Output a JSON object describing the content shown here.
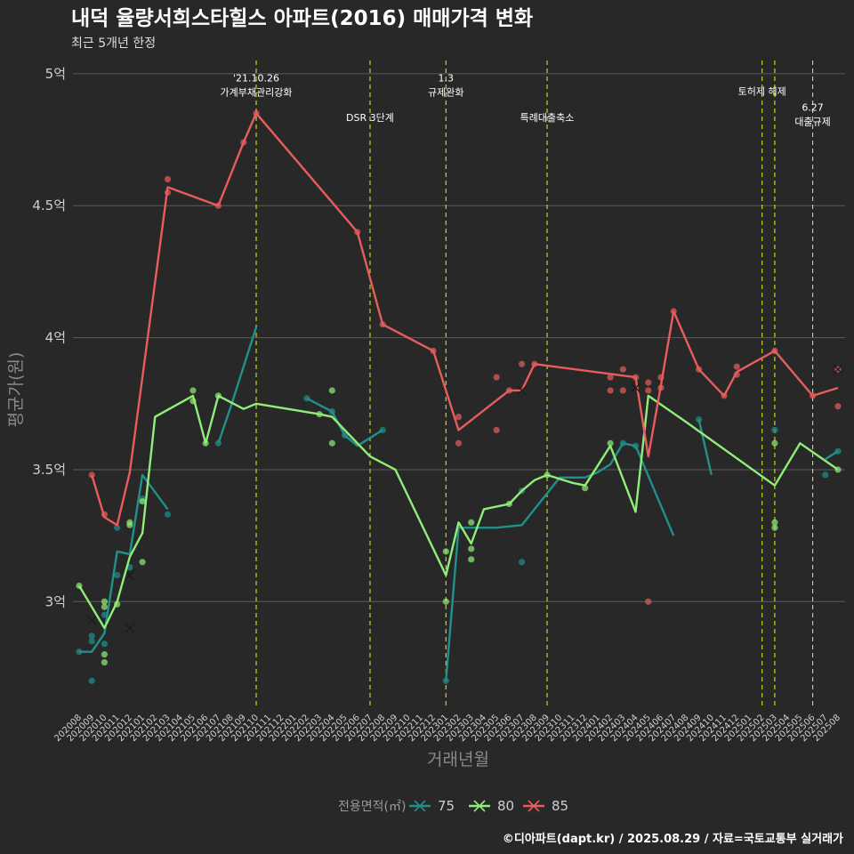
{
  "chart_data": {
    "type": "line",
    "title": "내덕 율량서희스타힐스 아파트(2016) 매매가격 변화",
    "subtitle": "최근 5개년 한정",
    "xlabel": "거래년월",
    "ylabel": "평균가(원)",
    "caption": "©디아파트(dapt.kr) / 2025.08.29 / 자료=국토교통부 실거래가",
    "ylim": [
      2.6,
      5.05
    ],
    "y_ticks": [
      {
        "value": 3,
        "label": "3억"
      },
      {
        "value": 3.5,
        "label": "3.5억"
      },
      {
        "value": 4,
        "label": "4억"
      },
      {
        "value": 4.5,
        "label": "4.5억"
      },
      {
        "value": 5,
        "label": "5억"
      }
    ],
    "x_months": [
      "202008",
      "202009",
      "202010",
      "202011",
      "202012",
      "202101",
      "202102",
      "202103",
      "202104",
      "202105",
      "202106",
      "202107",
      "202108",
      "202109",
      "202110",
      "202111",
      "202112",
      "202201",
      "202202",
      "202203",
      "202204",
      "202205",
      "202206",
      "202207",
      "202208",
      "202209",
      "202210",
      "202211",
      "202212",
      "202301",
      "202302",
      "202303",
      "202304",
      "202305",
      "202306",
      "202307",
      "202308",
      "202309",
      "202310",
      "202311",
      "202312",
      "202401",
      "202402",
      "202403",
      "202404",
      "202405",
      "202406",
      "202407",
      "202408",
      "202409",
      "202410",
      "202411",
      "202412",
      "202501",
      "202502",
      "202503",
      "202504",
      "202505",
      "202506",
      "202507",
      "202508"
    ],
    "events": [
      {
        "month": "202110",
        "lines": [
          "'21.10.26",
          "가계부채관리강화"
        ],
        "label_y": 4.97
      },
      {
        "month": "202207",
        "lines": [
          "DSR 3단계"
        ],
        "label_y": 4.82
      },
      {
        "month": "202301",
        "lines": [
          "1.3",
          "규제완화"
        ],
        "label_y": 4.97
      },
      {
        "month": "202309",
        "lines": [
          "특례대출축소"
        ],
        "label_y": 4.82
      },
      {
        "month": "202502",
        "lines": [
          "토허제 해제"
        ],
        "label_y": 4.92
      },
      {
        "month": "202503",
        "lines": [],
        "label_y": 4.92
      },
      {
        "month": "202506",
        "lines": [
          "6.27",
          "대출규제"
        ],
        "label_y": 4.86
      }
    ],
    "legend": {
      "title": "전용면적(㎡)",
      "position": "bottom"
    },
    "series": [
      {
        "name": "75",
        "color": "#21908C",
        "line": [
          [
            "202008",
            2.81
          ],
          [
            "202009",
            2.81
          ],
          [
            "202010",
            2.88
          ],
          [
            "202011",
            3.19
          ],
          [
            "202012",
            3.18
          ],
          [
            "202101",
            3.48
          ],
          [
            "202103",
            3.35
          ],
          null,
          [
            "202107",
            3.6
          ],
          [
            "202108",
            3.74
          ],
          [
            "202110",
            4.04
          ],
          null,
          [
            "202202",
            3.77
          ],
          [
            "202204",
            3.72
          ],
          [
            "202205",
            3.63
          ],
          [
            "202206",
            3.59
          ],
          [
            "202208",
            3.65
          ],
          null,
          [
            "202301",
            2.7
          ],
          [
            "202302",
            3.28
          ],
          [
            "202305",
            3.28
          ],
          [
            "202307",
            3.29
          ],
          [
            "202309",
            3.41
          ],
          [
            "202310",
            3.47
          ],
          [
            "202312",
            3.47
          ],
          [
            "202401",
            3.49
          ],
          [
            "202402",
            3.52
          ],
          [
            "202403",
            3.6
          ],
          [
            "202404",
            3.59
          ],
          [
            "202407",
            3.25
          ],
          null,
          [
            "202409",
            3.69
          ],
          [
            "202410",
            3.48
          ],
          null,
          [
            "202507",
            3.54
          ],
          [
            "202508",
            3.57
          ]
        ],
        "points": [
          [
            "202008",
            2.81
          ],
          [
            "202009",
            2.85
          ],
          [
            "202009",
            2.87
          ],
          [
            "202009",
            2.7
          ],
          [
            "202010",
            2.84
          ],
          [
            "202010",
            2.95
          ],
          [
            "202011",
            3.1
          ],
          [
            "202011",
            3.28
          ],
          [
            "202012",
            3.13
          ],
          [
            "202101",
            3.39
          ],
          [
            "202103",
            3.33
          ],
          [
            "202107",
            3.6
          ],
          [
            "202202",
            3.77
          ],
          [
            "202204",
            3.72
          ],
          [
            "202205",
            3.63
          ],
          [
            "202208",
            3.65
          ],
          [
            "202301",
            2.7
          ],
          [
            "202307",
            3.15
          ],
          [
            "202307",
            3.42
          ],
          [
            "202403",
            3.6
          ],
          [
            "202404",
            3.59
          ],
          [
            "202409",
            3.69
          ],
          [
            "202503",
            3.65
          ],
          [
            "202507",
            3.48
          ],
          [
            "202508",
            3.57
          ]
        ],
        "crosses": [
          [
            "202009",
            2.93
          ],
          [
            "202012",
            3.1
          ],
          [
            "202012",
            2.9
          ]
        ]
      },
      {
        "name": "80",
        "color": "#90EE78",
        "line": [
          [
            "202008",
            3.06
          ],
          [
            "202010",
            2.9
          ],
          [
            "202011",
            3.0
          ],
          [
            "202012",
            3.17
          ],
          [
            "202101",
            3.26
          ],
          [
            "202102",
            3.7
          ],
          [
            "202105",
            3.78
          ],
          [
            "202106",
            3.6
          ],
          [
            "202107",
            3.78
          ],
          [
            "202109",
            3.73
          ],
          [
            "202110",
            3.75
          ],
          [
            "202203",
            3.71
          ],
          [
            "202204",
            3.7
          ],
          [
            "202207",
            3.55
          ],
          [
            "202209",
            3.5
          ],
          [
            "202301",
            3.1
          ],
          [
            "202302",
            3.3
          ],
          [
            "202303",
            3.22
          ],
          [
            "202304",
            3.35
          ],
          [
            "202306",
            3.37
          ],
          [
            "202307",
            3.42
          ],
          [
            "202308",
            3.46
          ],
          [
            "202309",
            3.48
          ],
          [
            "202311",
            3.45
          ],
          [
            "202312",
            3.44
          ],
          [
            "202402",
            3.59
          ],
          [
            "202404",
            3.34
          ],
          [
            "202405",
            3.78
          ],
          [
            "202408",
            3.68
          ],
          [
            "202503",
            3.44
          ],
          [
            "202505",
            3.6
          ],
          [
            "202508",
            3.5
          ]
        ],
        "points": [
          [
            "202008",
            3.06
          ],
          [
            "202010",
            2.8
          ],
          [
            "202010",
            2.77
          ],
          [
            "202010",
            2.98
          ],
          [
            "202010",
            3.0
          ],
          [
            "202011",
            2.99
          ],
          [
            "202012",
            3.3
          ],
          [
            "202012",
            3.29
          ],
          [
            "202101",
            3.38
          ],
          [
            "202101",
            3.15
          ],
          [
            "202105",
            3.8
          ],
          [
            "202105",
            3.76
          ],
          [
            "202106",
            3.6
          ],
          [
            "202107",
            3.78
          ],
          [
            "202203",
            3.71
          ],
          [
            "202204",
            3.8
          ],
          [
            "202204",
            3.6
          ],
          [
            "202301",
            3.0
          ],
          [
            "202301",
            3.19
          ],
          [
            "202303",
            3.3
          ],
          [
            "202303",
            3.2
          ],
          [
            "202303",
            3.16
          ],
          [
            "202306",
            3.37
          ],
          [
            "202309",
            3.48
          ],
          [
            "202312",
            3.43
          ],
          [
            "202402",
            3.6
          ],
          [
            "202503",
            3.6
          ],
          [
            "202503",
            3.3
          ],
          [
            "202503",
            3.28
          ],
          [
            "202508",
            3.5
          ]
        ],
        "crosses": []
      },
      {
        "name": "85",
        "color": "#E85C5C",
        "line": [
          [
            "202009",
            3.48
          ],
          [
            "202010",
            3.32
          ],
          [
            "202011",
            3.29
          ],
          [
            "202012",
            3.49
          ],
          [
            "202101",
            3.85
          ],
          [
            "202103",
            4.57
          ],
          [
            "202107",
            4.5
          ],
          [
            "202109",
            4.74
          ],
          [
            "202110",
            4.85
          ],
          [
            "202206",
            4.4
          ],
          [
            "202208",
            4.05
          ],
          [
            "202212",
            3.95
          ],
          [
            "202302",
            3.65
          ],
          [
            "202306",
            3.8
          ],
          [
            "202307",
            3.8
          ],
          [
            "202308",
            3.9
          ],
          [
            "202404",
            3.85
          ],
          [
            "202405",
            3.55
          ],
          [
            "202406",
            3.82
          ],
          [
            "202407",
            4.1
          ],
          [
            "202409",
            3.88
          ],
          [
            "202411",
            3.78
          ],
          [
            "202412",
            3.87
          ],
          [
            "202503",
            3.95
          ],
          [
            "202506",
            3.78
          ],
          [
            "202508",
            3.81
          ]
        ],
        "points": [
          [
            "202009",
            3.48
          ],
          [
            "202010",
            3.33
          ],
          [
            "202103",
            4.6
          ],
          [
            "202103",
            4.55
          ],
          [
            "202107",
            4.5
          ],
          [
            "202109",
            4.74
          ],
          [
            "202110",
            4.85
          ],
          [
            "202206",
            4.4
          ],
          [
            "202208",
            4.05
          ],
          [
            "202212",
            3.95
          ],
          [
            "202302",
            3.7
          ],
          [
            "202302",
            3.6
          ],
          [
            "202305",
            3.85
          ],
          [
            "202305",
            3.65
          ],
          [
            "202306",
            3.8
          ],
          [
            "202307",
            3.9
          ],
          [
            "202308",
            3.9
          ],
          [
            "202402",
            3.85
          ],
          [
            "202402",
            3.8
          ],
          [
            "202403",
            3.88
          ],
          [
            "202403",
            3.8
          ],
          [
            "202404",
            3.85
          ],
          [
            "202405",
            3.83
          ],
          [
            "202405",
            3.8
          ],
          [
            "202405",
            3.0
          ],
          [
            "202406",
            3.85
          ],
          [
            "202406",
            3.81
          ],
          [
            "202407",
            4.1
          ],
          [
            "202409",
            3.88
          ],
          [
            "202411",
            3.78
          ],
          [
            "202412",
            3.89
          ],
          [
            "202412",
            3.86
          ],
          [
            "202503",
            3.95
          ],
          [
            "202506",
            3.78
          ],
          [
            "202508",
            3.88
          ],
          [
            "202508",
            3.74
          ]
        ],
        "crosses": [
          [
            "202307",
            3.8
          ],
          [
            "202404",
            3.81
          ],
          [
            "202508",
            3.88
          ]
        ]
      }
    ]
  }
}
